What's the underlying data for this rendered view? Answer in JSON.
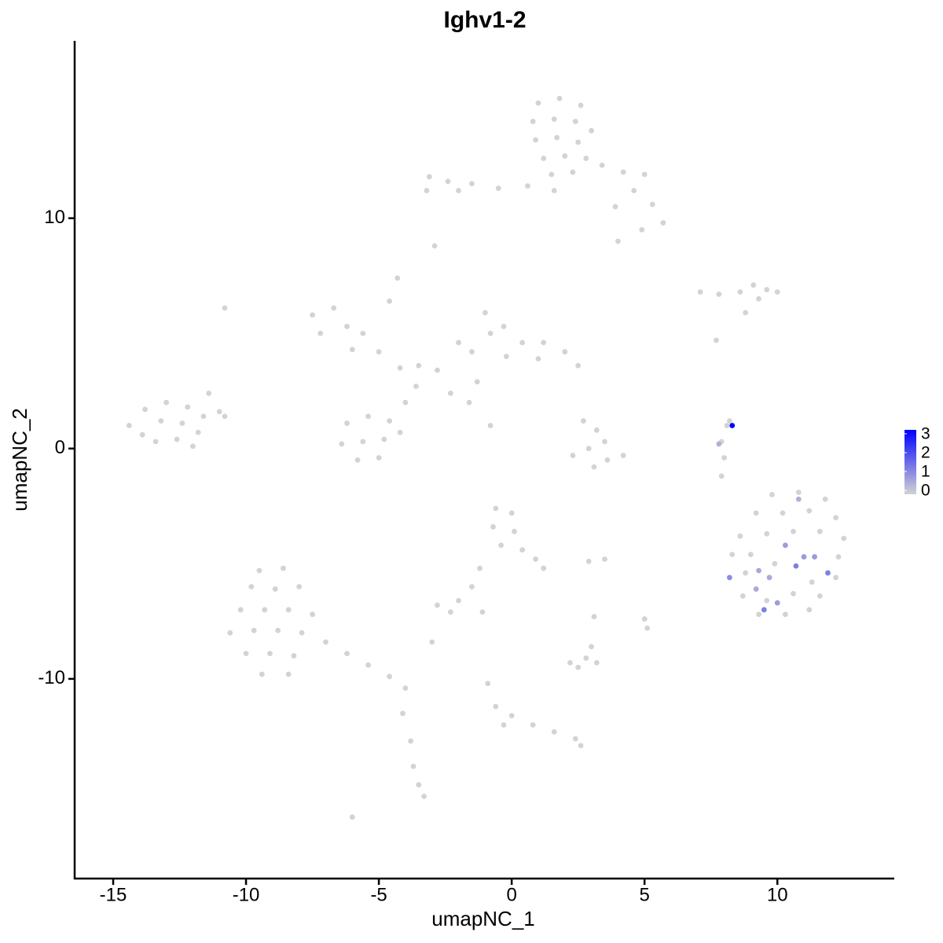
{
  "chart_data": {
    "type": "scatter",
    "title": "Ighv1-2",
    "x_label": "umapNC_1",
    "y_label": "umapNC_2",
    "xlim": [
      -16.45,
      14.4
    ],
    "ylim": [
      -18.67,
      17.7
    ],
    "xticks": [
      -15,
      -10,
      -5,
      0,
      5,
      10
    ],
    "yticks": [
      -10,
      0,
      10
    ],
    "grid": false,
    "legend_position": "right",
    "color_lim": [
      0,
      3
    ],
    "color_ticks": [
      0,
      1,
      2,
      3
    ],
    "low_color": "#d3d3d3",
    "high_color": "#0000ff",
    "x": [
      1.0,
      1.8,
      2.6,
      0.8,
      1.6,
      2.4,
      3.0,
      0.9,
      1.7,
      2.5,
      1.2,
      2.0,
      2.8,
      1.5,
      2.3,
      3.4,
      4.2,
      5.0,
      4.6,
      5.3,
      5.7,
      4.9,
      3.9,
      1.6,
      0.6,
      -0.5,
      -1.5,
      -2.4,
      -3.1,
      -3.2,
      -2.0,
      4.0,
      -14.4,
      -13.8,
      -13.0,
      -12.2,
      -13.9,
      -13.2,
      -12.4,
      -11.6,
      -13.4,
      -12.6,
      -11.8,
      -11.0,
      -11.4,
      -10.8,
      -12.0,
      -7.5,
      -6.7,
      -7.2,
      -6.2,
      -5.6,
      -6.0,
      -5.0,
      -4.6,
      -4.3,
      -4.2,
      -3.5,
      -2.8,
      -3.6,
      -4.0,
      -2.3,
      -1.6,
      -0.8,
      -1.5,
      -0.8,
      -1.0,
      -0.3,
      0.4,
      1.2,
      2.0,
      2.5,
      1.0,
      -0.2,
      -2.0,
      -1.3,
      -6.2,
      -5.4,
      -4.6,
      -6.4,
      -5.6,
      -4.8,
      -5.8,
      -5.0,
      -4.2,
      2.7,
      3.2,
      3.5,
      2.9,
      3.6,
      4.2,
      2.3,
      3.1,
      8.1,
      7.9,
      8.0,
      7.9,
      8.2,
      7.1,
      7.8,
      8.6,
      9.1,
      9.6,
      10.0,
      9.3,
      8.8,
      7.7,
      9.8,
      10.8,
      11.8,
      9.2,
      10.2,
      11.2,
      12.2,
      8.6,
      9.6,
      10.6,
      11.6,
      12.5,
      8.3,
      9.0,
      12.3,
      8.8,
      9.9,
      11.3,
      12.2,
      8.7,
      9.6,
      10.6,
      11.6,
      9.3,
      10.3,
      11.2,
      -9.5,
      -8.6,
      -9.8,
      -8.9,
      -8.0,
      -10.2,
      -9.3,
      -8.4,
      -7.5,
      -10.6,
      -9.7,
      -8.8,
      -7.9,
      -7.0,
      -10.0,
      -9.1,
      -8.2,
      -9.4,
      -8.4,
      -6.2,
      -5.4,
      -4.6,
      -4.0,
      -4.1,
      -3.8,
      -3.7,
      -3.5,
      -3.3,
      -6.0,
      -0.6,
      0.0,
      -0.7,
      0.1,
      -0.4,
      0.4,
      0.9,
      1.2,
      -1.2,
      -1.5,
      -2.0,
      -2.8,
      -2.3,
      -1.1,
      2.2,
      2.8,
      3.0,
      2.5,
      3.2,
      5.0,
      5.1,
      2.9,
      3.5,
      3.1,
      -0.9,
      -0.6,
      -0.3,
      0.0,
      0.8,
      1.6,
      2.4,
      2.6,
      -3.0,
      -10.8,
      -2.9,
      7.8,
      10.8,
      10.3,
      11.0,
      11.4,
      10.7,
      11.9,
      9.3,
      9.7,
      8.2,
      9.2,
      10.0,
      9.5,
      8.3
    ],
    "y": [
      15.0,
      15.2,
      14.9,
      14.2,
      14.3,
      14.2,
      13.8,
      13.4,
      13.5,
      13.3,
      12.6,
      12.7,
      12.6,
      11.9,
      12.0,
      12.3,
      12.0,
      11.9,
      11.2,
      10.6,
      9.8,
      9.5,
      10.5,
      11.2,
      11.4,
      11.3,
      11.5,
      11.6,
      11.8,
      11.2,
      11.2,
      9.0,
      1.0,
      1.7,
      2.0,
      1.8,
      0.6,
      1.2,
      1.1,
      1.4,
      0.3,
      0.4,
      0.7,
      1.6,
      2.4,
      1.4,
      0.1,
      5.8,
      6.1,
      5.0,
      5.3,
      5.0,
      4.3,
      4.2,
      6.4,
      7.4,
      3.5,
      3.6,
      3.4,
      2.7,
      2.0,
      2.4,
      2.0,
      1.0,
      4.2,
      5.0,
      5.9,
      5.3,
      4.6,
      4.6,
      4.2,
      3.6,
      3.9,
      4.0,
      4.6,
      2.9,
      1.1,
      1.4,
      1.2,
      0.2,
      0.3,
      0.4,
      -0.5,
      -0.4,
      0.7,
      1.2,
      0.8,
      0.3,
      0.0,
      -0.5,
      -0.3,
      -0.3,
      -0.8,
      1.0,
      0.3,
      -0.4,
      -1.2,
      1.2,
      6.8,
      6.7,
      6.8,
      7.1,
      6.9,
      6.8,
      6.5,
      5.9,
      4.7,
      -2.0,
      -1.9,
      -2.2,
      -2.8,
      -2.8,
      -2.7,
      -3.0,
      -3.8,
      -3.7,
      -3.6,
      -3.6,
      -3.9,
      -4.6,
      -4.6,
      -4.7,
      -5.4,
      -5.0,
      -5.8,
      -5.6,
      -6.4,
      -6.6,
      -6.3,
      -6.4,
      -7.2,
      -7.2,
      -7.0,
      -5.3,
      -5.2,
      -6.0,
      -6.1,
      -6.0,
      -7.0,
      -7.0,
      -7.0,
      -7.2,
      -8.0,
      -7.9,
      -7.9,
      -8.0,
      -8.4,
      -8.9,
      -8.9,
      -9.0,
      -9.8,
      -9.8,
      -8.9,
      -9.4,
      -9.9,
      -10.4,
      -11.5,
      -12.7,
      -13.8,
      -14.6,
      -15.1,
      -16.0,
      -2.6,
      -2.8,
      -3.4,
      -3.6,
      -4.2,
      -4.4,
      -4.8,
      -5.2,
      -5.2,
      -6.0,
      -6.6,
      -6.8,
      -7.1,
      -7.1,
      -9.3,
      -9.1,
      -8.6,
      -9.5,
      -9.3,
      -7.4,
      -7.8,
      -4.9,
      -4.8,
      -7.3,
      -10.2,
      -11.2,
      -12.0,
      -11.6,
      -12.0,
      -12.3,
      -12.6,
      -12.9,
      -8.4,
      6.1,
      8.8,
      0.2,
      -2.2,
      -4.2,
      -4.7,
      -4.7,
      -5.1,
      -5.4,
      -5.3,
      -5.6,
      -5.6,
      -6.1,
      -6.7,
      -7.0,
      1.0
    ],
    "expression": [
      0,
      0,
      0,
      0,
      0,
      0,
      0,
      0,
      0,
      0,
      0,
      0,
      0,
      0,
      0,
      0,
      0,
      0,
      0,
      0,
      0,
      0,
      0,
      0,
      0,
      0,
      0,
      0,
      0,
      0,
      0,
      0,
      0,
      0,
      0,
      0,
      0,
      0,
      0,
      0,
      0,
      0,
      0,
      0,
      0,
      0,
      0,
      0,
      0,
      0,
      0,
      0,
      0,
      0,
      0,
      0,
      0,
      0,
      0,
      0,
      0,
      0,
      0,
      0,
      0,
      0,
      0,
      0,
      0,
      0,
      0,
      0,
      0,
      0,
      0,
      0,
      0,
      0,
      0,
      0,
      0,
      0,
      0,
      0,
      0,
      0,
      0,
      0,
      0,
      0,
      0,
      0,
      0,
      0,
      0,
      0,
      0,
      0,
      0,
      0,
      0,
      0,
      0,
      0,
      0,
      0,
      0,
      0,
      0,
      0,
      0,
      0,
      0,
      0,
      0,
      0,
      0,
      0,
      0,
      0,
      0,
      0,
      0,
      0,
      0,
      0,
      0,
      0,
      0,
      0,
      0,
      0,
      0,
      0,
      0,
      0,
      0,
      0,
      0,
      0,
      0,
      0,
      0,
      0,
      0,
      0,
      0,
      0,
      0,
      0,
      0,
      0,
      0,
      0,
      0,
      0,
      0,
      0,
      0,
      0,
      0,
      0,
      0,
      0,
      0,
      0,
      0,
      0,
      0,
      0,
      0,
      0,
      0,
      0,
      0,
      0,
      0,
      0,
      0,
      0,
      0,
      0,
      0,
      0,
      0,
      0,
      0,
      0,
      0,
      0,
      0,
      0,
      0,
      0,
      0,
      0,
      0,
      0.5,
      0.5,
      0.8,
      0.8,
      0.8,
      1.2,
      1.2,
      0.6,
      0.6,
      1.0,
      0.6,
      0.8,
      1.2,
      3.0
    ]
  }
}
